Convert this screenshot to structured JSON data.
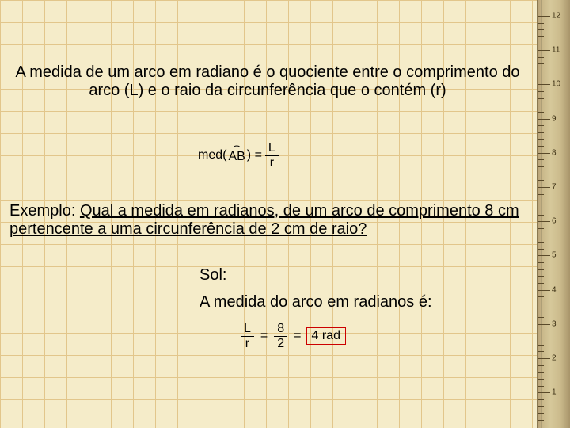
{
  "definition": "A medida de um arco em radiano é o quociente entre o comprimento do arco (L) e o raio da circunferência que o contém (r)",
  "formula_def": {
    "lhs_pre": "med(",
    "lhs_arc": "AB",
    "lhs_post": ") =",
    "num": "L",
    "den": "r"
  },
  "example": {
    "label": "Exemplo:",
    "question": "Qual a medida em radianos, de um arco de comprimento 8 cm pertencente a uma circunferência de 2 cm de raio?"
  },
  "sol_label": "Sol:",
  "answer_text": "A medida do arco em radianos é:",
  "formula_ans": {
    "frac1_num": "L",
    "frac1_den": "r",
    "eq1": "=",
    "frac2_num": "8",
    "frac2_den": "2",
    "eq2": "=",
    "result": "4 rad"
  },
  "ruler": {
    "labels": [
      "12",
      "11",
      "10",
      "9",
      "8",
      "7",
      "6",
      "5",
      "4",
      "3",
      "2",
      "1"
    ]
  },
  "colors": {
    "bg": "#f5ecc9",
    "grid": "#d4a85a",
    "text": "#000000",
    "box": "#cc0000"
  }
}
